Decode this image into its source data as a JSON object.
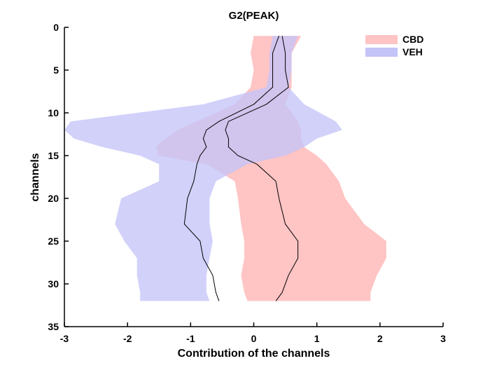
{
  "chart_data": {
    "type": "area",
    "title": "G2(PEAK)",
    "xlabel": "Contribution of the channels",
    "ylabel": "channels",
    "xlim": [
      -3,
      3
    ],
    "ylim": [
      0,
      35
    ],
    "y_reversed": true,
    "xticks": [
      -3,
      -2,
      -1,
      0,
      1,
      2,
      3
    ],
    "yticks": [
      0,
      5,
      10,
      15,
      20,
      25,
      30,
      35
    ],
    "legend_position": "top-right",
    "series": [
      {
        "name": "CBD",
        "color": "#ffc4c4",
        "channels": [
          1,
          3,
          5,
          7,
          9,
          11,
          12,
          13,
          14,
          15,
          16,
          18,
          20,
          23,
          25,
          27,
          29,
          31,
          32
        ],
        "lower": [
          0.0,
          -0.05,
          0.0,
          -0.05,
          -0.3,
          -0.9,
          -1.2,
          -1.4,
          -1.55,
          -1.5,
          -0.75,
          -0.3,
          -0.25,
          -0.2,
          -0.15,
          -0.15,
          -0.2,
          -0.15,
          -0.1
        ],
        "upper": [
          0.75,
          0.6,
          0.6,
          0.6,
          0.5,
          0.7,
          0.75,
          0.75,
          0.8,
          1.0,
          1.15,
          1.35,
          1.45,
          1.75,
          2.1,
          2.1,
          1.95,
          1.85,
          1.85
        ],
        "mean": [
          0.4,
          0.3,
          0.3,
          0.3,
          0.0,
          -0.55,
          -0.75,
          -0.8,
          -0.75,
          -0.85,
          -0.9,
          -0.95,
          -1.05,
          -1.1,
          -0.85,
          -0.8,
          -0.65,
          -0.6,
          -0.55
        ]
      },
      {
        "name": "VEH",
        "color": "#c4c4f8",
        "channels": [
          1,
          3,
          5,
          7,
          9,
          11,
          12,
          13,
          14,
          15,
          16,
          18,
          20,
          23,
          25,
          27,
          29,
          31,
          32
        ],
        "lower": [
          0.3,
          0.25,
          0.25,
          0.2,
          -0.8,
          -2.9,
          -3.0,
          -2.85,
          -2.4,
          -1.8,
          -1.5,
          -1.5,
          -2.1,
          -2.2,
          -2.05,
          -1.85,
          -1.85,
          -1.8,
          -1.8
        ],
        "upper": [
          0.7,
          0.6,
          0.6,
          0.55,
          0.8,
          1.3,
          1.4,
          1.0,
          0.8,
          0.5,
          -0.1,
          -0.6,
          -0.7,
          -0.7,
          -0.65,
          -0.7,
          -0.75,
          -0.75,
          -0.7
        ],
        "mean": [
          0.45,
          0.5,
          0.5,
          0.55,
          0.2,
          -0.4,
          -0.45,
          -0.4,
          -0.4,
          -0.25,
          0.05,
          0.35,
          0.4,
          0.5,
          0.7,
          0.7,
          0.55,
          0.45,
          0.35
        ]
      }
    ]
  }
}
